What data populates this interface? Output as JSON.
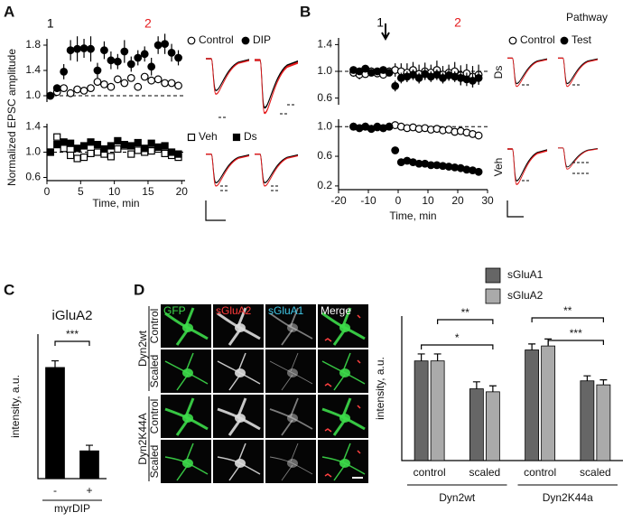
{
  "chart_data": [
    {
      "type": "scatter",
      "panel": "A",
      "ylabel": "Normalized EPSC amplitude",
      "xlim": [
        0,
        20.5
      ],
      "ylim": [
        0.9,
        1.9
      ],
      "yticks": [
        {
          "value": 1,
          "label": "1.0"
        },
        1.4,
        1.8
      ],
      "refline": 1,
      "annotations": [
        {
          "label": "1",
          "x": 0.5,
          "color": "#000000"
        },
        {
          "label": "2",
          "x": 15,
          "color": "#e41a1c"
        }
      ],
      "x": [
        0.5,
        1.5,
        2.5,
        3.5,
        4.5,
        5.5,
        6.5,
        7.5,
        8.5,
        9.5,
        10.5,
        11.5,
        12.5,
        13.5,
        14.5,
        15.5,
        16.5,
        17.5,
        18.5,
        19.5
      ],
      "series": [
        {
          "name": "Control",
          "color": "#000000",
          "marker": "circle",
          "filled": false,
          "values": [
            1.0,
            1.06,
            1.12,
            1.04,
            1.1,
            1.08,
            1.12,
            1.22,
            1.18,
            1.14,
            1.26,
            1.2,
            1.28,
            1.14,
            1.3,
            1.24,
            1.26,
            1.2,
            1.2,
            1.16
          ],
          "errors": [
            0.02,
            0.03,
            0.04,
            0.04,
            0.04,
            0.04,
            0.04,
            0.05,
            0.04,
            0.04,
            0.05,
            0.04,
            0.05,
            0.04,
            0.05,
            0.04,
            0.04,
            0.04,
            0.04,
            0.04
          ]
        },
        {
          "name": "DIP",
          "color": "#000000",
          "marker": "circle",
          "filled": true,
          "values": [
            1.0,
            1.12,
            1.38,
            1.72,
            1.74,
            1.75,
            1.74,
            1.4,
            1.72,
            1.56,
            1.54,
            1.7,
            1.5,
            1.6,
            1.66,
            1.46,
            1.8,
            1.82,
            1.68,
            1.6
          ],
          "errors": [
            0.02,
            0.06,
            0.12,
            0.16,
            0.2,
            0.15,
            0.2,
            0.12,
            0.14,
            0.14,
            0.12,
            0.18,
            0.12,
            0.12,
            0.12,
            0.14,
            0.14,
            0.16,
            0.14,
            0.12
          ]
        }
      ]
    },
    {
      "type": "scatter",
      "xlabel": "Time, min",
      "xlim": [
        0,
        20.5
      ],
      "ylim": [
        0.55,
        1.45
      ],
      "yticks": [
        0.6,
        {
          "value": 1,
          "label": "1.0"
        },
        1.4
      ],
      "xticks": [
        0,
        5,
        10,
        15,
        20
      ],
      "refline": 1,
      "x": [
        0.5,
        1.5,
        2.5,
        3.5,
        4.5,
        5.5,
        6.5,
        7.5,
        8.5,
        9.5,
        10.5,
        11.5,
        12.5,
        13.5,
        14.5,
        15.5,
        16.5,
        17.5,
        18.5,
        19.5
      ],
      "series": [
        {
          "name": "Veh",
          "color": "#000000",
          "marker": "square",
          "filled": false,
          "values": [
            1.0,
            1.24,
            1.06,
            0.95,
            0.9,
            0.92,
            0.98,
            1.0,
            0.97,
            0.93,
            1.05,
            1.1,
            0.97,
            1.03,
            1.0,
            1.02,
            1.05,
            0.98,
            0.95,
            0.92
          ],
          "errors": [
            0.03,
            0.05,
            0.05,
            0.05,
            0.05,
            0.05,
            0.05,
            0.05,
            0.05,
            0.05,
            0.05,
            0.05,
            0.05,
            0.05,
            0.05,
            0.05,
            0.05,
            0.05,
            0.05,
            0.05
          ]
        },
        {
          "name": "Ds",
          "color": "#000000",
          "marker": "square",
          "filled": true,
          "values": [
            1.0,
            1.12,
            1.16,
            1.14,
            1.06,
            1.1,
            1.16,
            1.12,
            1.05,
            1.1,
            1.18,
            1.12,
            1.1,
            1.15,
            1.06,
            1.14,
            1.08,
            1.1,
            1.0,
            0.97
          ],
          "errors": [
            0.02,
            0.04,
            0.04,
            0.04,
            0.04,
            0.04,
            0.04,
            0.04,
            0.04,
            0.04,
            0.04,
            0.04,
            0.04,
            0.04,
            0.04,
            0.04,
            0.04,
            0.04,
            0.04,
            0.04
          ]
        }
      ]
    },
    {
      "type": "scatter",
      "panel": "B",
      "legend_title": "Pathway",
      "side_label": "Ds",
      "xlim": [
        -20,
        30
      ],
      "ylim": [
        0.5,
        1.5
      ],
      "yticks": [
        0.6,
        {
          "value": 1,
          "label": "1.0"
        },
        1.4
      ],
      "refline": 1,
      "annotations": [
        {
          "label": "1",
          "x": -6,
          "color": "#000000"
        },
        {
          "label": "2",
          "x": 20,
          "color": "#e41a1c"
        }
      ],
      "x": [
        -15,
        -13,
        -11,
        -9,
        -7,
        -5,
        -3,
        -1,
        1,
        3,
        5,
        7,
        9,
        11,
        13,
        15,
        17,
        19,
        21,
        23,
        25,
        27
      ],
      "series": [
        {
          "name": "Control",
          "color": "#000000",
          "marker": "circle",
          "filled": false,
          "values": [
            0.98,
            0.95,
            0.96,
            1.0,
            0.97,
            0.95,
            1.0,
            1.02,
            1.0,
            0.98,
            1.02,
            0.96,
            1.0,
            0.98,
            1.02,
            0.95,
            0.98,
            1.0,
            0.94,
            0.97,
            0.92,
            0.95
          ],
          "errors": [
            0.06,
            0.07,
            0.05,
            0.06,
            0.06,
            0.05,
            0.06,
            0.1,
            0.12,
            0.14,
            0.12,
            0.14,
            0.13,
            0.12,
            0.14,
            0.13,
            0.12,
            0.14,
            0.15,
            0.14,
            0.16,
            0.15
          ]
        },
        {
          "name": "Test",
          "color": "#000000",
          "marker": "circle",
          "filled": true,
          "values": [
            1.02,
            1.0,
            1.04,
            0.98,
            1.0,
            1.02,
            0.98,
            0.78,
            0.9,
            0.92,
            0.95,
            0.9,
            0.96,
            0.92,
            0.95,
            0.9,
            0.94,
            0.92,
            0.9,
            0.88,
            0.86,
            0.9
          ],
          "errors": [
            0.05,
            0.05,
            0.05,
            0.05,
            0.05,
            0.05,
            0.05,
            0.08,
            0.08,
            0.08,
            0.08,
            0.08,
            0.08,
            0.08,
            0.08,
            0.08,
            0.08,
            0.08,
            0.1,
            0.1,
            0.1,
            0.1
          ]
        }
      ]
    },
    {
      "type": "scatter",
      "xlabel": "Time, min",
      "side_label": "Veh",
      "xlim": [
        -20,
        30
      ],
      "ylim": [
        0.15,
        1.1
      ],
      "yticks": [
        0.2,
        0.6,
        {
          "value": 1,
          "label": "1.0"
        }
      ],
      "xticks": [
        -20,
        -10,
        0,
        10,
        20,
        30
      ],
      "refline": 1,
      "x": [
        -15,
        -13,
        -11,
        -9,
        -7,
        -5,
        -3,
        -1,
        1,
        3,
        5,
        7,
        9,
        11,
        13,
        15,
        17,
        19,
        21,
        23,
        25,
        27
      ],
      "series": [
        {
          "name": "Control",
          "color": "#000000",
          "marker": "circle",
          "filled": false,
          "values": [
            1.0,
            0.98,
            1.0,
            0.97,
            1.0,
            0.98,
            1.0,
            1.02,
            1.0,
            0.98,
            0.99,
            0.97,
            0.98,
            0.96,
            0.97,
            0.95,
            0.96,
            0.93,
            0.94,
            0.92,
            0.9,
            0.88
          ],
          "errors": [
            0.03,
            0.03,
            0.03,
            0.03,
            0.03,
            0.03,
            0.03,
            0.03,
            0.03,
            0.03,
            0.03,
            0.03,
            0.03,
            0.03,
            0.03,
            0.03,
            0.03,
            0.03,
            0.03,
            0.03,
            0.03,
            0.03
          ]
        },
        {
          "name": "Test",
          "color": "#000000",
          "marker": "circle",
          "filled": true,
          "values": [
            1.0,
            0.98,
            1.0,
            0.97,
            0.99,
            0.98,
            1.0,
            0.68,
            0.52,
            0.54,
            0.52,
            0.5,
            0.5,
            0.48,
            0.48,
            0.47,
            0.46,
            0.45,
            0.44,
            0.42,
            0.41,
            0.39
          ],
          "errors": [
            0.03,
            0.03,
            0.03,
            0.03,
            0.03,
            0.03,
            0.03,
            0.04,
            0.03,
            0.03,
            0.03,
            0.03,
            0.03,
            0.03,
            0.03,
            0.03,
            0.03,
            0.03,
            0.03,
            0.03,
            0.03,
            0.03
          ]
        }
      ]
    },
    {
      "type": "bar",
      "panel": "C",
      "title": "iGluA2",
      "ylabel": "intensity, a.u.",
      "xlabel": "myrDIP",
      "categories": [
        "-",
        "+"
      ],
      "values": [
        1.0,
        0.25
      ],
      "errors": [
        0.06,
        0.05
      ],
      "color": "#000000",
      "ylim": [
        0,
        1.3
      ],
      "significance": [
        "***"
      ]
    },
    {
      "type": "bar",
      "panel": "D",
      "ylabel": "intensity, a.u.",
      "categories": [
        "control",
        "scaled",
        "control",
        "scaled"
      ],
      "groups": [
        "Dyn2wt",
        "Dyn2K44a"
      ],
      "ylim": [
        0,
        1.45
      ],
      "significance": [
        "*",
        "**",
        "**",
        "***"
      ],
      "series": [
        {
          "name": "sGluA1",
          "color": "#666666",
          "values": [
            1.0,
            0.72,
            1.11,
            0.8
          ],
          "errors": [
            0.07,
            0.07,
            0.06,
            0.05
          ]
        },
        {
          "name": "sGluA2",
          "color": "#aaaaaa",
          "values": [
            1.0,
            0.69,
            1.15,
            0.76
          ],
          "errors": [
            0.07,
            0.06,
            0.07,
            0.05
          ]
        }
      ]
    }
  ],
  "micrographs": {
    "columns": [
      "GFP",
      "sGluA2",
      "sGluA1",
      "Merge"
    ],
    "rows": [
      "Control",
      "Scaled",
      "Control",
      "Scaled"
    ],
    "groups": [
      "Dyn2wt",
      "Dyn2K44A"
    ]
  }
}
